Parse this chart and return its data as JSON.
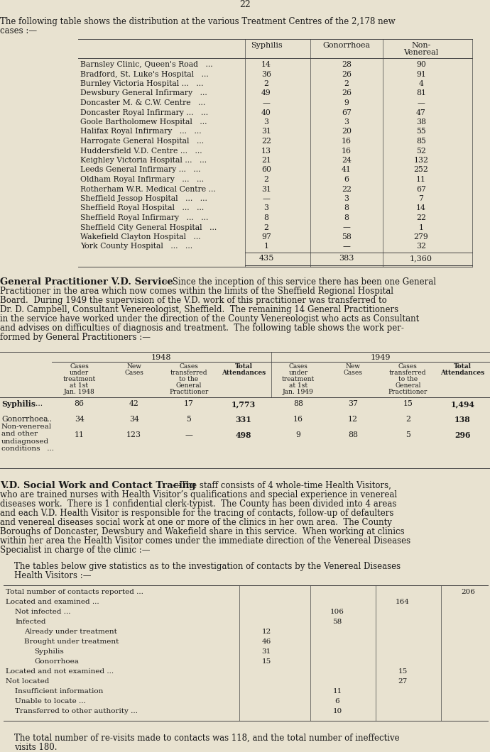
{
  "bg_color": "#e8e2d0",
  "page_number": "22",
  "table1_rows": [
    [
      "Barnsley Clinic, Queen's Road   ...",
      "14",
      "28",
      "90"
    ],
    [
      "Bradford, St. Luke's Hospital   ...",
      "36",
      "26",
      "91"
    ],
    [
      "Burnley Victoria Hospital ...   ...",
      "2",
      "2",
      "4"
    ],
    [
      "Dewsbury General Infirmary   ...",
      "49",
      "26",
      "81"
    ],
    [
      "Doncaster M. & C.W. Centre   ...",
      "—",
      "9",
      "—"
    ],
    [
      "Doncaster Royal Infirmary ...   ...",
      "40",
      "67",
      "47"
    ],
    [
      "Goole Bartholomew Hospital   ...",
      "3",
      "3",
      "38"
    ],
    [
      "Halifax Royal Infirmary   ...   ...",
      "31",
      "20",
      "55"
    ],
    [
      "Harrogate General Hospital   ...",
      "22",
      "16",
      "85"
    ],
    [
      "Huddersfield V.D. Centre ...   ...",
      "13",
      "16",
      "52"
    ],
    [
      "Keighley Victoria Hospital ...   ...",
      "21",
      "24",
      "132"
    ],
    [
      "Leeds General Infirmary ...   ...",
      "60",
      "41",
      "252"
    ],
    [
      "Oldham Royal Infirmary   ...   ...",
      "2",
      "6",
      "11"
    ],
    [
      "Rotherham W.R. Medical Centre ...",
      "31",
      "22",
      "67"
    ],
    [
      "Sheffield Jessop Hospital   ...   ...",
      "—",
      "3",
      "7"
    ],
    [
      "Sheffield Royal Hospital   ...   ...",
      "3",
      "8",
      "14"
    ],
    [
      "Sheffield Royal Infirmary   ...   ...",
      "8",
      "8",
      "22"
    ],
    [
      "Sheffield City General Hospital   ...",
      "2",
      "—",
      "1"
    ],
    [
      "Wakefield Clayton Hospital   ...",
      "97",
      "58",
      "279"
    ],
    [
      "York County Hospital   ...   ...",
      "1",
      "—",
      "32"
    ]
  ],
  "table1_totals": [
    "435",
    "383",
    "1,360"
  ],
  "table2_data": [
    [
      "86",
      "42",
      "17",
      "1,773",
      "88",
      "37",
      "15",
      "1,494"
    ],
    [
      "34",
      "34",
      "5",
      "331",
      "16",
      "12",
      "2",
      "138"
    ],
    [
      "11",
      "123",
      "—",
      "498",
      "9",
      "88",
      "5",
      "296"
    ]
  ],
  "contact_rows": [
    [
      "Total number of contacts reported ...",
      0,
      "",
      "",
      "",
      "206"
    ],
    [
      "Located and examined ...",
      0,
      "",
      "",
      "164",
      ""
    ],
    [
      "Not infected ...",
      1,
      "",
      "106",
      "",
      ""
    ],
    [
      "Infected",
      1,
      "",
      "58",
      "",
      ""
    ],
    [
      "Already under treatment",
      2,
      "12",
      "",
      "",
      ""
    ],
    [
      "Brought under treatment",
      2,
      "46",
      "",
      "",
      ""
    ],
    [
      "Syphilis",
      3,
      "31",
      "",
      "",
      ""
    ],
    [
      "Gonorrhoea",
      3,
      "15",
      "",
      "",
      ""
    ],
    [
      "Located and not examined ...",
      0,
      "",
      "",
      "15",
      ""
    ],
    [
      "Not located",
      0,
      "",
      "",
      "27",
      ""
    ],
    [
      "Insufficient information",
      1,
      "",
      "11",
      "",
      ""
    ],
    [
      "Unable to locate ...",
      1,
      "",
      "6",
      "",
      ""
    ],
    [
      "Transferred to other authority ...",
      1,
      "",
      "10",
      "",
      ""
    ]
  ]
}
